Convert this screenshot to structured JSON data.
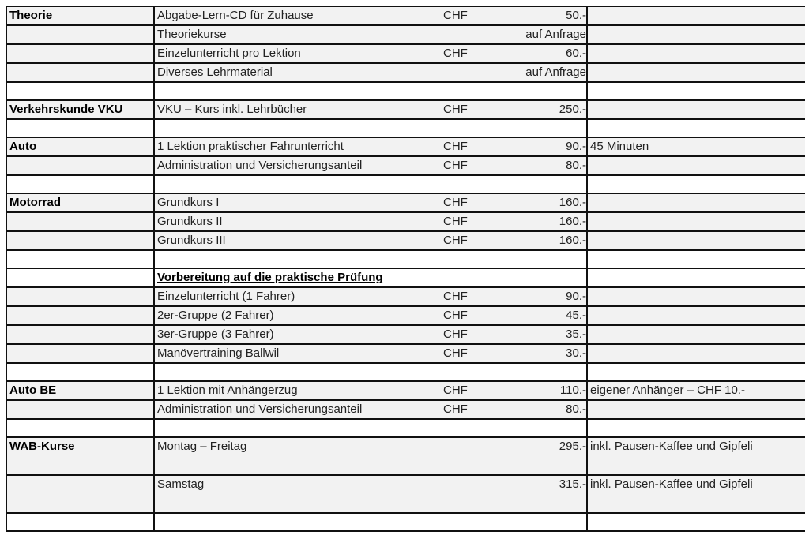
{
  "rows": [
    {
      "cat": "Theorie",
      "desc": "Abgabe-Lern-CD für Zuhause",
      "cur": "CHF",
      "price": "50.-",
      "note": ""
    },
    {
      "cat": "",
      "desc": "Theoriekurse",
      "cur": "",
      "price": "auf Anfrage",
      "note": ""
    },
    {
      "cat": "",
      "desc": "Einzelunterricht pro Lektion",
      "cur": "CHF",
      "price": "60.-",
      "note": ""
    },
    {
      "cat": "",
      "desc": "Diverses Lehrmaterial",
      "cur": "",
      "price": "auf Anfrage",
      "note": ""
    },
    {
      "empty": true
    },
    {
      "cat": "Verkehrskunde VKU",
      "desc": "VKU – Kurs inkl. Lehrbücher",
      "cur": "CHF",
      "price": "250.-",
      "note": ""
    },
    {
      "empty": true
    },
    {
      "cat": "Auto",
      "desc": "1 Lektion praktischer Fahrunterricht",
      "cur": "CHF",
      "price": "90.-",
      "note": "45 Minuten"
    },
    {
      "cat": "",
      "desc": "Administration und Versicherungsanteil",
      "cur": "CHF",
      "price": "80.-",
      "note": ""
    },
    {
      "empty": true
    },
    {
      "cat": "Motorrad",
      "desc": "Grundkurs I",
      "cur": "CHF",
      "price": "160.-",
      "note": ""
    },
    {
      "cat": "",
      "desc": "Grundkurs II",
      "cur": "CHF",
      "price": "160.-",
      "note": ""
    },
    {
      "cat": "",
      "desc": "Grundkurs III",
      "cur": "CHF",
      "price": "160.-",
      "note": ""
    },
    {
      "empty": true
    },
    {
      "cat": "",
      "desc": "Vorbereitung auf die praktische Prüfung",
      "cur": "",
      "price": "",
      "note": "",
      "heading": true
    },
    {
      "cat": "",
      "desc": "Einzelunterricht (1 Fahrer)",
      "cur": "CHF",
      "price": "90.-",
      "note": ""
    },
    {
      "cat": "",
      "desc": "2er-Gruppe  (2 Fahrer)",
      "cur": "CHF",
      "price": "45.-",
      "note": ""
    },
    {
      "cat": "",
      "desc": "3er-Gruppe  (3 Fahrer)",
      "cur": "CHF",
      "price": "35.-",
      "note": ""
    },
    {
      "cat": "",
      "desc": "Manövertraining Ballwil",
      "cur": "CHF",
      "price": "30.-",
      "note": ""
    },
    {
      "empty": true
    },
    {
      "cat": "Auto BE",
      "desc": "1 Lektion mit Anhängerzug",
      "cur": "CHF",
      "price": "110.-",
      "note": "eigener Anhänger – CHF 10.-"
    },
    {
      "cat": "",
      "desc": "Administration und Versicherungsanteil",
      "cur": "CHF",
      "price": "80.-",
      "note": ""
    },
    {
      "empty": true
    },
    {
      "cat": "WAB-Kurse",
      "desc": "Montag – Freitag",
      "cur": "",
      "price": "295.-",
      "note": "inkl. Pausen-Kaffee und Gipfeli",
      "tall": true
    },
    {
      "cat": "",
      "desc": "Samstag",
      "cur": "",
      "price": "315.-",
      "note": "inkl. Pausen-Kaffee und Gipfeli",
      "tall": true
    },
    {
      "empty": true
    }
  ]
}
